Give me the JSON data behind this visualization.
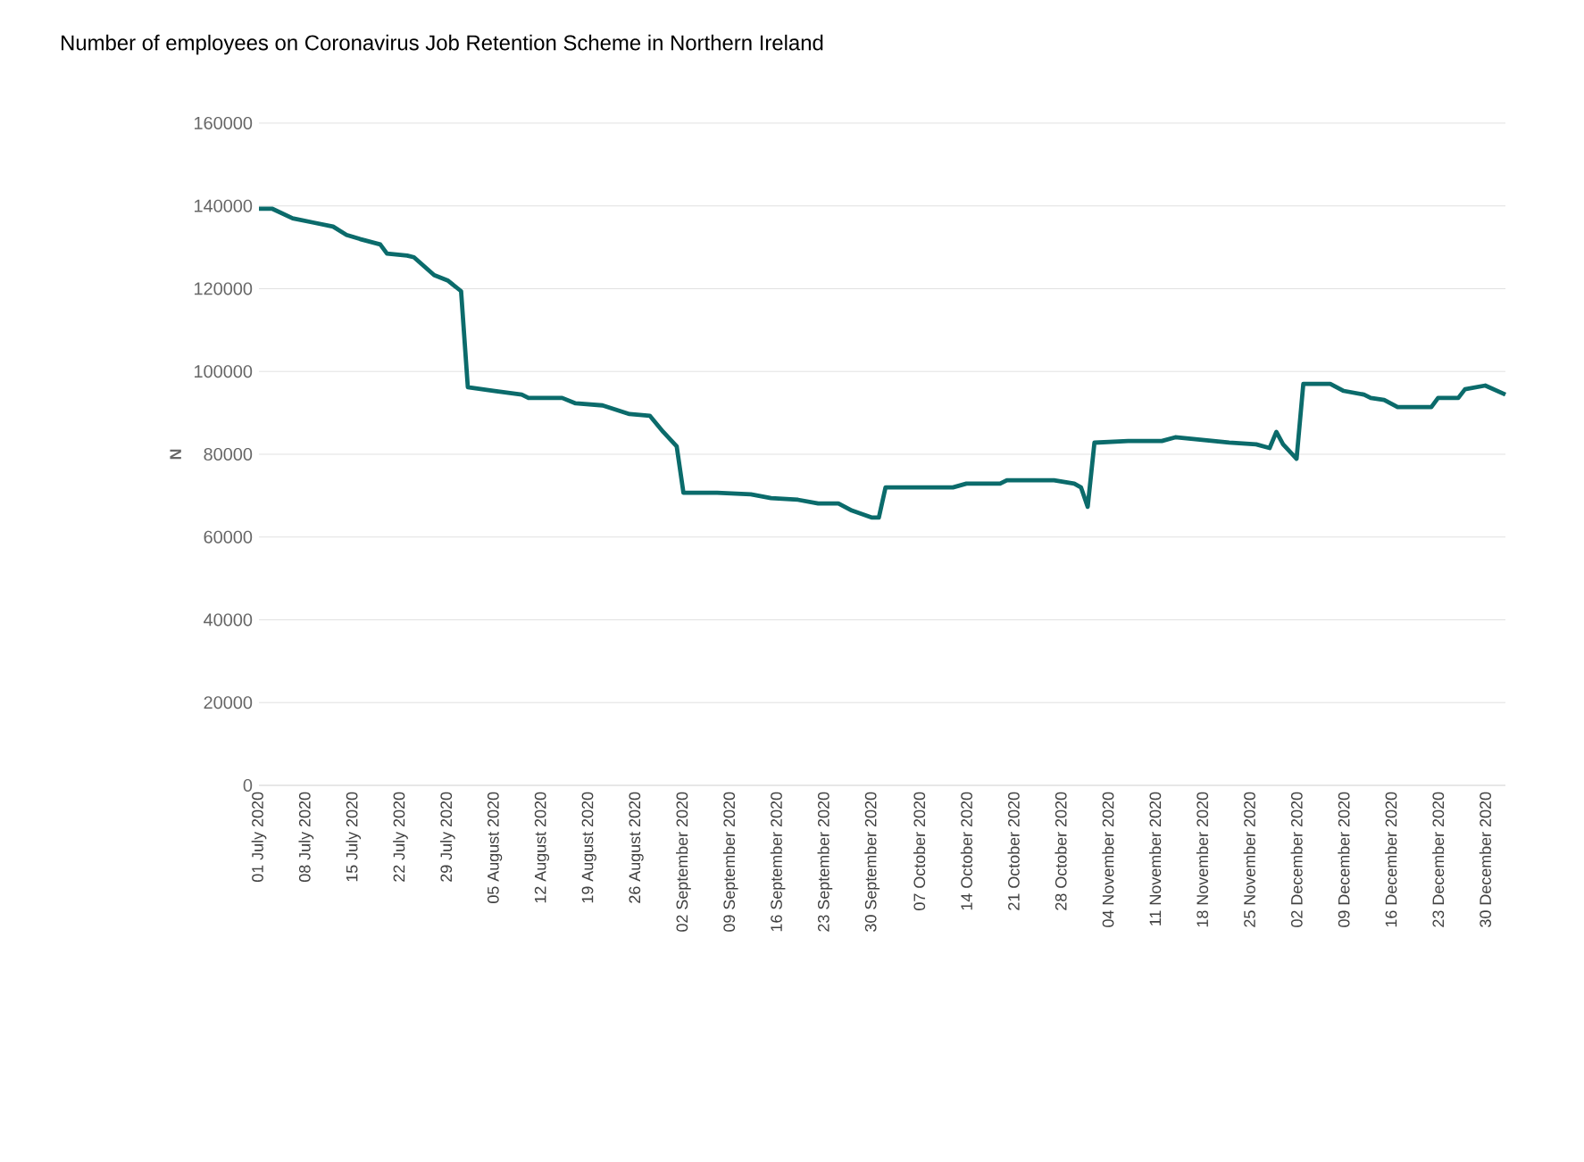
{
  "chart_data": {
    "type": "line",
    "title": "Number of employees on Coronavirus Job Retention Scheme in Northern Ireland",
    "ylabel": "N",
    "color": "#0b6b6b",
    "x": [
      "2020-07-01",
      "2020-07-03",
      "2020-07-06",
      "2020-07-09",
      "2020-07-12",
      "2020-07-14",
      "2020-07-16",
      "2020-07-19",
      "2020-07-20",
      "2020-07-23",
      "2020-07-24",
      "2020-07-27",
      "2020-07-29",
      "2020-07-31",
      "2020-08-01",
      "2020-08-05",
      "2020-08-09",
      "2020-08-10",
      "2020-08-15",
      "2020-08-17",
      "2020-08-21",
      "2020-08-25",
      "2020-08-28",
      "2020-08-30",
      "2020-09-01",
      "2020-09-02",
      "2020-09-07",
      "2020-09-12",
      "2020-09-15",
      "2020-09-19",
      "2020-09-22",
      "2020-09-25",
      "2020-09-27",
      "2020-09-30",
      "2020-10-01",
      "2020-10-02",
      "2020-10-12",
      "2020-10-14",
      "2020-10-19",
      "2020-10-20",
      "2020-10-27",
      "2020-10-30",
      "2020-10-31",
      "2020-11-01",
      "2020-11-02",
      "2020-11-07",
      "2020-11-12",
      "2020-11-14",
      "2020-11-22",
      "2020-11-26",
      "2020-11-28",
      "2020-11-29",
      "2020-11-30",
      "2020-12-02",
      "2020-12-03",
      "2020-12-07",
      "2020-12-09",
      "2020-12-12",
      "2020-12-13",
      "2020-12-15",
      "2020-12-17",
      "2020-12-22",
      "2020-12-23",
      "2020-12-26",
      "2020-12-27",
      "2020-12-30",
      "2021-01-02"
    ],
    "values": [
      139300,
      139300,
      137000,
      136000,
      135000,
      133000,
      132000,
      130700,
      128500,
      128000,
      127600,
      123300,
      122000,
      119400,
      96200,
      95300,
      94400,
      93600,
      93600,
      92300,
      91800,
      89700,
      89300,
      85400,
      81900,
      70700,
      70700,
      70300,
      69400,
      69000,
      68100,
      68100,
      66400,
      64700,
      64700,
      72000,
      72000,
      72900,
      72900,
      73700,
      73700,
      72900,
      72000,
      67300,
      82800,
      83200,
      83200,
      84100,
      82800,
      82400,
      81500,
      85400,
      82400,
      78900,
      97000,
      97000,
      95300,
      94400,
      93600,
      93100,
      91400,
      91400,
      93600,
      93600,
      95700,
      96600,
      94400
    ],
    "xlim": [
      "2020-07-01",
      "2021-01-02"
    ],
    "xticks": [
      {
        "value": "2020-07-01",
        "label": "01 July 2020"
      },
      {
        "value": "2020-07-08",
        "label": "08 July 2020"
      },
      {
        "value": "2020-07-15",
        "label": "15 July 2020"
      },
      {
        "value": "2020-07-22",
        "label": "22 July 2020"
      },
      {
        "value": "2020-07-29",
        "label": "29 July 2020"
      },
      {
        "value": "2020-08-05",
        "label": "05 August 2020"
      },
      {
        "value": "2020-08-12",
        "label": "12 August 2020"
      },
      {
        "value": "2020-08-19",
        "label": "19 August 2020"
      },
      {
        "value": "2020-08-26",
        "label": "26 August 2020"
      },
      {
        "value": "2020-09-02",
        "label": "02 September 2020"
      },
      {
        "value": "2020-09-09",
        "label": "09 September 2020"
      },
      {
        "value": "2020-09-16",
        "label": "16 September 2020"
      },
      {
        "value": "2020-09-23",
        "label": "23 September 2020"
      },
      {
        "value": "2020-09-30",
        "label": "30 September 2020"
      },
      {
        "value": "2020-10-07",
        "label": "07 October 2020"
      },
      {
        "value": "2020-10-14",
        "label": "14 October 2020"
      },
      {
        "value": "2020-10-21",
        "label": "21 October 2020"
      },
      {
        "value": "2020-10-28",
        "label": "28 October 2020"
      },
      {
        "value": "2020-11-04",
        "label": "04 November 2020"
      },
      {
        "value": "2020-11-11",
        "label": "11 November 2020"
      },
      {
        "value": "2020-11-18",
        "label": "18 November 2020"
      },
      {
        "value": "2020-11-25",
        "label": "25 November 2020"
      },
      {
        "value": "2020-12-02",
        "label": "02 December 2020"
      },
      {
        "value": "2020-12-09",
        "label": "09 December 2020"
      },
      {
        "value": "2020-12-16",
        "label": "16 December 2020"
      },
      {
        "value": "2020-12-23",
        "label": "23 December 2020"
      },
      {
        "value": "2020-12-30",
        "label": "30 December 2020"
      }
    ],
    "ylim": [
      0,
      160000
    ],
    "yticks": [
      0,
      20000,
      40000,
      60000,
      80000,
      100000,
      120000,
      140000,
      160000
    ],
    "grid": "y",
    "marker": "none",
    "line_style": "solid"
  }
}
